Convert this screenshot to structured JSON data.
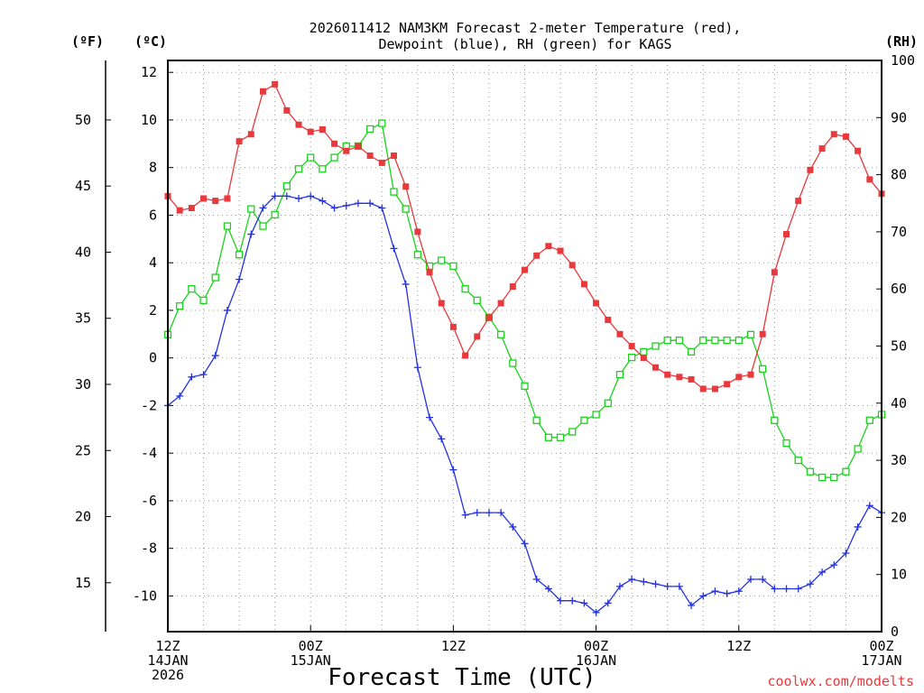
{
  "chart_data": {
    "type": "line",
    "title_line1": "2026011412 NAM3KM Forecast 2-meter Temperature (red),",
    "title_line2": "Dewpoint (blue), RH (green) for KAGS",
    "units": {
      "f": "(ºF)",
      "c": "(ºC)",
      "rh": "(RH)"
    },
    "xlabel": "Forecast Time (UTC)",
    "credit": "coolwx.com/modelts",
    "x_range_hours": [
      0,
      60
    ],
    "ylim_c": [
      -11.5,
      12.5
    ],
    "ylim_rh": [
      0,
      100
    ],
    "grid": true,
    "x_ticks": [
      {
        "hour": 0,
        "line1": "12Z",
        "line2": "14JAN",
        "line3": "2026"
      },
      {
        "hour": 12,
        "line1": "00Z",
        "line2": "15JAN",
        "line3": ""
      },
      {
        "hour": 24,
        "line1": "12Z",
        "line2": "",
        "line3": ""
      },
      {
        "hour": 36,
        "line1": "00Z",
        "line2": "16JAN",
        "line3": ""
      },
      {
        "hour": 48,
        "line1": "12Z",
        "line2": "",
        "line3": ""
      },
      {
        "hour": 60,
        "line1": "00Z",
        "line2": "17JAN",
        "line3": ""
      }
    ],
    "y_ticks_c": [
      12,
      10,
      8,
      6,
      4,
      2,
      0,
      -2,
      -4,
      -6,
      -8,
      -10
    ],
    "y_ticks_f": [
      50,
      45,
      40,
      35,
      30,
      25,
      20,
      15
    ],
    "y_ticks_rh": [
      100,
      90,
      80,
      70,
      60,
      50,
      40,
      30,
      20,
      10,
      0
    ],
    "series": [
      {
        "name": "Temperature",
        "units": "°C",
        "color": "#e8393c",
        "marker": "filled-square",
        "values": [
          6.8,
          6.2,
          6.3,
          6.7,
          6.6,
          6.7,
          9.1,
          9.4,
          11.2,
          11.5,
          10.4,
          9.8,
          9.5,
          9.6,
          9.0,
          8.7,
          8.9,
          8.5,
          8.2,
          8.5,
          7.2,
          5.3,
          3.6,
          2.3,
          1.3,
          0.1,
          0.9,
          1.7,
          2.3,
          3.0,
          3.7,
          4.3,
          4.7,
          4.5,
          3.9,
          3.1,
          2.3,
          1.6,
          1.0,
          0.5,
          0.0,
          -0.4,
          -0.7,
          -0.8,
          -0.9,
          -1.3,
          -1.3,
          -1.1,
          -0.8,
          -0.7,
          1.0,
          3.6,
          5.2,
          6.6,
          7.9,
          8.8,
          9.4,
          9.3,
          8.7,
          7.5,
          6.9
        ]
      },
      {
        "name": "Dewpoint",
        "units": "°C",
        "color": "#2332e0",
        "marker": "plus",
        "values": [
          -2.0,
          -1.6,
          -0.8,
          -0.7,
          0.1,
          2.0,
          3.3,
          5.2,
          6.3,
          6.8,
          6.8,
          6.7,
          6.8,
          6.6,
          6.3,
          6.4,
          6.5,
          6.5,
          6.3,
          4.6,
          3.1,
          -0.4,
          -2.5,
          -3.4,
          -4.7,
          -6.6,
          -6.5,
          -6.5,
          -6.5,
          -7.1,
          -7.8,
          -9.3,
          -9.7,
          -10.2,
          -10.2,
          -10.3,
          -10.7,
          -10.3,
          -9.6,
          -9.3,
          -9.4,
          -9.5,
          -9.6,
          -9.6,
          -10.4,
          -10.0,
          -9.8,
          -9.9,
          -9.8,
          -9.3,
          -9.3,
          -9.7,
          -9.7,
          -9.7,
          -9.5,
          -9.0,
          -8.7,
          -8.2,
          -7.1,
          -6.2,
          -6.5
        ]
      },
      {
        "name": "RH",
        "units": "%",
        "color": "#19d31c",
        "marker": "open-square",
        "values": [
          52,
          57,
          60,
          58,
          62,
          71,
          66,
          74,
          71,
          73,
          78,
          81,
          83,
          81,
          83,
          85,
          85,
          88,
          89,
          77,
          74,
          66,
          64,
          65,
          64,
          60,
          58,
          55,
          52,
          47,
          43,
          37,
          34,
          34,
          35,
          37,
          38,
          40,
          45,
          48,
          49,
          50,
          51,
          51,
          49,
          51,
          51,
          51,
          51,
          52,
          46,
          37,
          33,
          30,
          28,
          27,
          27,
          28,
          32,
          37,
          38
        ]
      }
    ]
  }
}
